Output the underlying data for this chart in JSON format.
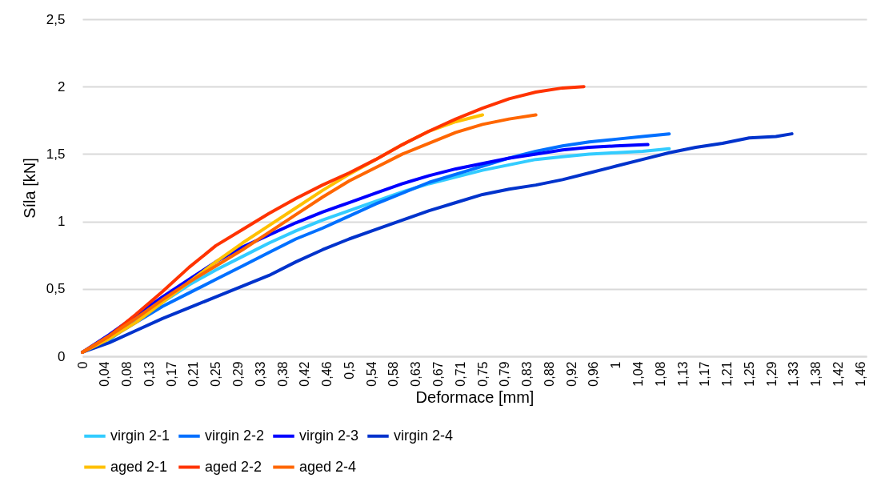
{
  "chart_data": {
    "type": "line",
    "xlabel": "Deformace [mm]",
    "ylabel": "Síla [kN]",
    "xlim": [
      0,
      1.47
    ],
    "ylim": [
      0,
      2.5
    ],
    "xticks": [
      0,
      {
        "value": 0.0417,
        "label": "0,04"
      },
      {
        "value": 0.0833,
        "label": "0,08"
      },
      {
        "value": 0.125,
        "label": "0,13"
      },
      {
        "value": 0.1667,
        "label": "0,17"
      },
      {
        "value": 0.2083,
        "label": "0,21"
      },
      {
        "value": 0.25,
        "label": "0,25"
      },
      {
        "value": 0.2917,
        "label": "0,29"
      },
      {
        "value": 0.3333,
        "label": "0,33"
      },
      {
        "value": 0.375,
        "label": "0,38"
      },
      {
        "value": 0.4167,
        "label": "0,42"
      },
      {
        "value": 0.4583,
        "label": "0,46"
      },
      {
        "value": 0.5,
        "label": "0,5"
      },
      {
        "value": 0.5417,
        "label": "0,54"
      },
      {
        "value": 0.5833,
        "label": "0,58"
      },
      {
        "value": 0.625,
        "label": "0,63"
      },
      {
        "value": 0.6667,
        "label": "0,67"
      },
      {
        "value": 0.7083,
        "label": "0,71"
      },
      {
        "value": 0.75,
        "label": "0,75"
      },
      {
        "value": 0.7917,
        "label": "0,79"
      },
      {
        "value": 0.8333,
        "label": "0,83"
      },
      {
        "value": 0.875,
        "label": "0,88"
      },
      {
        "value": 0.9167,
        "label": "0,92"
      },
      {
        "value": 0.9583,
        "label": "0,96"
      },
      1,
      {
        "value": 1.0417,
        "label": "1,04"
      },
      {
        "value": 1.0833,
        "label": "1,08"
      },
      {
        "value": 1.125,
        "label": "1,13"
      },
      {
        "value": 1.1667,
        "label": "1,17"
      },
      {
        "value": 1.2083,
        "label": "1,21"
      },
      {
        "value": 1.25,
        "label": "1,25"
      },
      {
        "value": 1.2917,
        "label": "1,29"
      },
      {
        "value": 1.3333,
        "label": "1,33"
      },
      {
        "value": 1.375,
        "label": "1,38"
      },
      {
        "value": 1.4167,
        "label": "1,42"
      },
      {
        "value": 1.4583,
        "label": "1,46"
      }
    ],
    "yticks": [
      0,
      {
        "value": 0.5,
        "label": "0,5"
      },
      1,
      {
        "value": 1.5,
        "label": "1,5"
      },
      2,
      {
        "value": 2.5,
        "label": "2,5"
      }
    ],
    "grid": "y",
    "legend": "bottom",
    "marker": "none",
    "line_style": "solid",
    "series": [
      {
        "name": "virgin 2-1",
        "color": "#33ccff",
        "x": [
          0.05,
          0.1,
          0.15,
          0.2,
          0.25,
          0.3,
          0.35,
          0.4,
          0.45,
          0.5,
          0.55,
          0.6,
          0.65,
          0.7,
          0.75,
          0.8,
          0.85,
          0.9,
          0.95,
          1.0,
          1.05,
          1.1
        ],
        "values": [
          0.12,
          0.27,
          0.4,
          0.53,
          0.64,
          0.74,
          0.84,
          0.93,
          1.01,
          1.08,
          1.15,
          1.22,
          1.28,
          1.33,
          1.38,
          1.42,
          1.46,
          1.48,
          1.5,
          1.51,
          1.52,
          1.54
        ]
      },
      {
        "name": "virgin 2-2",
        "color": "#0070ff",
        "x": [
          0,
          0.05,
          0.1,
          0.15,
          0.2,
          0.25,
          0.3,
          0.35,
          0.4,
          0.45,
          0.5,
          0.55,
          0.6,
          0.65,
          0.7,
          0.75,
          0.8,
          0.85,
          0.9,
          0.95,
          1.0,
          1.05,
          1.1
        ],
        "values": [
          0.03,
          0.13,
          0.25,
          0.37,
          0.47,
          0.57,
          0.67,
          0.77,
          0.87,
          0.95,
          1.04,
          1.13,
          1.21,
          1.29,
          1.35,
          1.41,
          1.47,
          1.52,
          1.56,
          1.59,
          1.61,
          1.63,
          1.65
        ]
      },
      {
        "name": "virgin 2-3",
        "color": "#0000ff",
        "x": [
          0,
          0.05,
          0.1,
          0.15,
          0.2,
          0.25,
          0.3,
          0.35,
          0.4,
          0.45,
          0.5,
          0.55,
          0.6,
          0.65,
          0.7,
          0.75,
          0.8,
          0.85,
          0.9,
          0.95,
          1.0,
          1.06
        ],
        "values": [
          0.03,
          0.16,
          0.3,
          0.44,
          0.57,
          0.7,
          0.81,
          0.9,
          0.99,
          1.07,
          1.14,
          1.21,
          1.28,
          1.34,
          1.39,
          1.43,
          1.47,
          1.5,
          1.53,
          1.55,
          1.56,
          1.57
        ]
      },
      {
        "name": "virgin 2-4",
        "color": "#0033cc",
        "x": [
          0,
          0.05,
          0.1,
          0.15,
          0.2,
          0.25,
          0.3,
          0.35,
          0.4,
          0.45,
          0.5,
          0.55,
          0.6,
          0.65,
          0.7,
          0.75,
          0.8,
          0.85,
          0.9,
          0.95,
          1.0,
          1.05,
          1.1,
          1.15,
          1.2,
          1.25,
          1.3,
          1.33
        ],
        "values": [
          0.03,
          0.1,
          0.19,
          0.28,
          0.36,
          0.44,
          0.52,
          0.6,
          0.7,
          0.79,
          0.87,
          0.94,
          1.01,
          1.08,
          1.14,
          1.2,
          1.24,
          1.27,
          1.31,
          1.36,
          1.41,
          1.46,
          1.51,
          1.55,
          1.58,
          1.62,
          1.63,
          1.65
        ]
      },
      {
        "name": "aged 2-1",
        "color": "#ffc000",
        "x": [
          0,
          0.05,
          0.1,
          0.15,
          0.2,
          0.25,
          0.3,
          0.35,
          0.4,
          0.45,
          0.5,
          0.55,
          0.6,
          0.65,
          0.7,
          0.75
        ],
        "values": [
          0.03,
          0.13,
          0.25,
          0.4,
          0.55,
          0.7,
          0.84,
          0.97,
          1.1,
          1.23,
          1.35,
          1.46,
          1.57,
          1.67,
          1.74,
          1.79
        ]
      },
      {
        "name": "aged 2-2",
        "color": "#ff3300",
        "x": [
          0,
          0.05,
          0.1,
          0.15,
          0.2,
          0.25,
          0.3,
          0.35,
          0.4,
          0.45,
          0.5,
          0.55,
          0.6,
          0.65,
          0.7,
          0.75,
          0.8,
          0.85,
          0.9,
          0.94
        ],
        "values": [
          0.03,
          0.15,
          0.31,
          0.48,
          0.66,
          0.82,
          0.94,
          1.06,
          1.17,
          1.27,
          1.36,
          1.46,
          1.57,
          1.67,
          1.76,
          1.84,
          1.91,
          1.96,
          1.99,
          2.0
        ]
      },
      {
        "name": "aged 2-4",
        "color": "#ff6600",
        "x": [
          0,
          0.05,
          0.1,
          0.15,
          0.2,
          0.25,
          0.3,
          0.35,
          0.4,
          0.45,
          0.5,
          0.55,
          0.6,
          0.65,
          0.7,
          0.75,
          0.8,
          0.85
        ],
        "values": [
          0.03,
          0.15,
          0.28,
          0.42,
          0.55,
          0.67,
          0.79,
          0.92,
          1.05,
          1.18,
          1.3,
          1.4,
          1.5,
          1.58,
          1.66,
          1.72,
          1.76,
          1.79
        ]
      }
    ]
  }
}
